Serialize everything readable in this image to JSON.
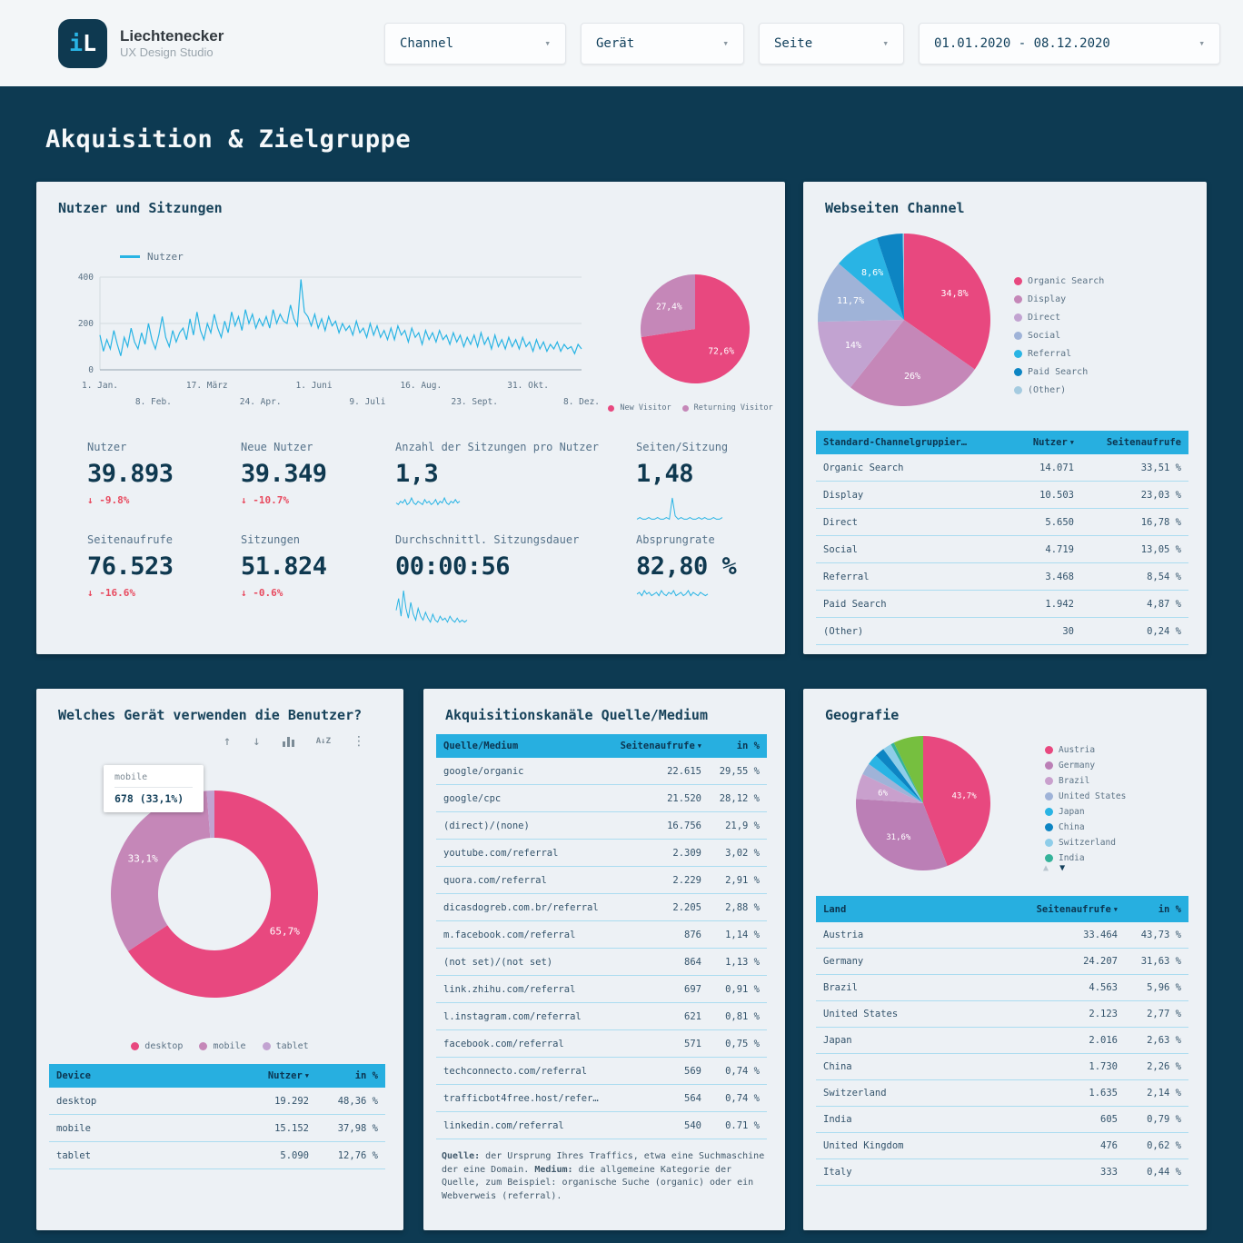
{
  "colors": {
    "background": "#0d3a52",
    "card": "#edf1f5",
    "header_bar": "#f3f6f8",
    "accent_cyan": "#29b4e4",
    "accent_pink": "#e8487f",
    "negative_red": "#e84a5f",
    "navy_text": "#0f3950",
    "table_header": "#27afe0"
  },
  "icons": {
    "chevron_down": "▾",
    "arrow_up": "↑",
    "arrow_down": "↓",
    "sort_az": "A↓Z",
    "kebab": "⋮",
    "sort_asc": "▲",
    "sort_desc": "▼",
    "delta_down": "↓"
  },
  "header": {
    "logo": {
      "mark_i": "i",
      "mark_l": "L",
      "brand": "Liechtenecker",
      "subtitle": "UX Design Studio"
    },
    "filters": [
      {
        "id": "channel",
        "label": "Channel"
      },
      {
        "id": "geraet",
        "label": "Gerät"
      },
      {
        "id": "seite",
        "label": "Seite"
      },
      {
        "id": "daterange",
        "label": "01.01.2020 - 08.12.2020"
      }
    ]
  },
  "page_title": "Akquisition & Zielgruppe",
  "cards": {
    "overview": {
      "title": "Nutzer und Sitzungen",
      "line_legend": "Nutzer",
      "kpis": [
        {
          "label": "Nutzer",
          "value": "39.893",
          "delta": "-9.8%"
        },
        {
          "label": "Neue Nutzer",
          "value": "39.349",
          "delta": "-10.7%"
        },
        {
          "label": "Anzahl der Sitzungen pro Nutzer",
          "value": "1,3",
          "spark": "sessions_per_user"
        },
        {
          "label": "Seiten/Sitzung",
          "value": "1,48",
          "spark": "pages_per_session"
        },
        {
          "label": "Seitenaufrufe",
          "value": "76.523",
          "delta": "-16.6%"
        },
        {
          "label": "Sitzungen",
          "value": "51.824",
          "delta": "-0.6%"
        },
        {
          "label": "Durchschnittl. Sitzungsdauer",
          "value": "00:00:56",
          "spark": "avg_duration"
        },
        {
          "label": "Absprungrate",
          "value": "82,80 %",
          "spark": "bounce_rate"
        }
      ]
    },
    "channels": {
      "title": "Webseiten Channel"
    },
    "devices": {
      "title": "Welches Gerät verwenden die Benutzer?",
      "toolbar": [
        "arrow_up",
        "arrow_down",
        "bar_chart",
        "sort_az",
        "kebab"
      ],
      "tooltip": {
        "line1": "mobile",
        "line2": "678 (33,1%)"
      }
    },
    "sources": {
      "title": "Akquisitionskanäle Quelle/Medium",
      "footnote": [
        {
          "b": "Quelle:"
        },
        {
          "t": " der Ursprung Ihres Traffics, etwa eine Suchmaschine der eine Domain. "
        },
        {
          "b": "Medium:"
        },
        {
          "t": " die allgemeine Kategorie der Quelle, zum Beispiel: organische Suche (organic) oder ein Webverweis (referral)."
        }
      ]
    },
    "geo": {
      "title": "Geografie"
    }
  },
  "tables": {
    "channels": {
      "widths": [
        "1fr",
        "90px",
        "118px"
      ],
      "header": [
        {
          "label": "Standard-Channelgruppier…"
        },
        {
          "label": "Nutzer",
          "sort": true
        },
        {
          "label": "Seitenaufrufe"
        }
      ],
      "rows": [
        [
          "Organic Search",
          "14.071",
          "33,51 %"
        ],
        [
          "Display",
          "10.503",
          "23,03 %"
        ],
        [
          "Direct",
          "5.650",
          "16,78 %"
        ],
        [
          "Social",
          "4.719",
          "13,05 %"
        ],
        [
          "Referral",
          "3.468",
          "8,54 %"
        ],
        [
          "Paid Search",
          "1.942",
          "4,87 %"
        ],
        [
          "(Other)",
          "30",
          "0,24 %"
        ]
      ]
    },
    "devices": {
      "widths": [
        "1fr",
        "96px",
        "76px"
      ],
      "header": [
        {
          "label": "Device"
        },
        {
          "label": "Nutzer",
          "sort": true
        },
        {
          "label": "in %"
        }
      ],
      "rows": [
        [
          "desktop",
          "19.292",
          "48,36 %"
        ],
        [
          "mobile",
          "15.152",
          "37,98 %"
        ],
        [
          "tablet",
          "5.090",
          "12,76 %"
        ]
      ]
    },
    "sources": {
      "widths": [
        "1fr",
        "96px",
        "64px"
      ],
      "header": [
        {
          "label": "Quelle/Medium"
        },
        {
          "label": "Seitenaufrufe",
          "sort": true
        },
        {
          "label": "in %"
        }
      ],
      "rows": [
        [
          "google/organic",
          "22.615",
          "29,55 %"
        ],
        [
          "google/cpc",
          "21.520",
          "28,12 %"
        ],
        [
          "(direct)/(none)",
          "16.756",
          "21,9 %"
        ],
        [
          "youtube.com/referral",
          "2.309",
          "3,02 %"
        ],
        [
          "quora.com/referral",
          "2.229",
          "2,91 %"
        ],
        [
          "dicasdogreb.com.br/referral",
          "2.205",
          "2,88 %"
        ],
        [
          "m.facebook.com/referral",
          "876",
          "1,14 %"
        ],
        [
          "(not set)/(not set)",
          "864",
          "1,13 %"
        ],
        [
          "link.zhihu.com/referral",
          "697",
          "0,91 %"
        ],
        [
          "l.instagram.com/referral",
          "621",
          "0,81 %"
        ],
        [
          "facebook.com/referral",
          "571",
          "0,75 %"
        ],
        [
          "techconnecto.com/referral",
          "569",
          "0,74 %"
        ],
        [
          "trafficbot4free.host/refer…",
          "564",
          "0,74 %"
        ],
        [
          "linkedin.com/referral",
          "540",
          "0.71 %"
        ]
      ]
    },
    "geo": {
      "widths": [
        "1fr",
        "112px",
        "70px"
      ],
      "header": [
        {
          "label": "Land"
        },
        {
          "label": "Seitenaufrufe",
          "sort": true
        },
        {
          "label": "in %"
        }
      ],
      "rows": [
        [
          "Austria",
          "33.464",
          "43,73 %"
        ],
        [
          "Germany",
          "24.207",
          "31,63 %"
        ],
        [
          "Brazil",
          "4.563",
          "5,96 %"
        ],
        [
          "United States",
          "2.123",
          "2,77 %"
        ],
        [
          "Japan",
          "2.016",
          "2,63 %"
        ],
        [
          "China",
          "1.730",
          "2,26 %"
        ],
        [
          "Switzerland",
          "1.635",
          "2,14 %"
        ],
        [
          "India",
          "605",
          "0,79 %"
        ],
        [
          "United Kingdom",
          "476",
          "0,62 %"
        ],
        [
          "Italy",
          "333",
          "0,44 %"
        ]
      ]
    }
  },
  "chart_data": [
    {
      "id": "users-timeseries",
      "type": "line",
      "title": "Nutzer und Sitzungen",
      "series_name": "Nutzer",
      "ylim": [
        0,
        400
      ],
      "yticks": [
        0,
        200,
        400
      ],
      "grid": true,
      "line_color": "#29b4e4",
      "x_labels": [
        "1. Jan.",
        "8. Feb.",
        "17. März",
        "24. Apr.",
        "1. Juni",
        "9. Juli",
        "16. Aug.",
        "23. Sept.",
        "31. Okt.",
        "8. Dez."
      ],
      "values": [
        150,
        80,
        130,
        90,
        170,
        110,
        60,
        140,
        100,
        180,
        120,
        90,
        160,
        110,
        200,
        130,
        90,
        150,
        230,
        140,
        100,
        170,
        120,
        160,
        180,
        130,
        220,
        150,
        250,
        170,
        130,
        200,
        160,
        240,
        180,
        140,
        210,
        160,
        250,
        190,
        230,
        170,
        260,
        200,
        240,
        180,
        220,
        190,
        230,
        180,
        260,
        200,
        240,
        210,
        200,
        280,
        220,
        190,
        390,
        250,
        230,
        190,
        240,
        180,
        220,
        170,
        230,
        190,
        210,
        160,
        200,
        170,
        190,
        150,
        210,
        160,
        180,
        140,
        200,
        150,
        190,
        140,
        170,
        130,
        180,
        130,
        190,
        150,
        170,
        120,
        180,
        140,
        160,
        110,
        170,
        130,
        160,
        120,
        170,
        130,
        150,
        110,
        160,
        120,
        150,
        100,
        140,
        110,
        150,
        100,
        160,
        110,
        140,
        90,
        150,
        100,
        130,
        90,
        140,
        100,
        130,
        90,
        140,
        100,
        120,
        80,
        130,
        90,
        120,
        80,
        110,
        90,
        120,
        80,
        110,
        90,
        100,
        70,
        110,
        90
      ]
    },
    {
      "id": "visitor-pie",
      "type": "pie",
      "title": "New vs Returning Visitor",
      "slices": [
        {
          "name": "New Visitor",
          "value": 72.6,
          "label": "72,6%",
          "color": "#e8487f"
        },
        {
          "name": "Returning Visitor",
          "value": 27.4,
          "label": "27,4%",
          "color": "#c587b8"
        }
      ]
    },
    {
      "id": "channel-pie",
      "type": "pie",
      "title": "Webseiten Channel",
      "slices": [
        {
          "name": "Organic Search",
          "value": 34.8,
          "label": "34,8%",
          "color": "#e8487f"
        },
        {
          "name": "Display",
          "value": 26.0,
          "label": "26%",
          "color": "#c587b8"
        },
        {
          "name": "Direct",
          "value": 14.0,
          "label": "14%",
          "color": "#c2a3d1"
        },
        {
          "name": "Social",
          "value": 11.7,
          "label": "11,7%",
          "color": "#9fb3d8"
        },
        {
          "name": "Referral",
          "value": 8.6,
          "label": "8,6%",
          "color": "#29b4e4"
        },
        {
          "name": "Paid Search",
          "value": 4.87,
          "color": "#0d85c3"
        },
        {
          "name": "(Other)",
          "value": 0.24,
          "color": "#a5cbe0"
        }
      ]
    },
    {
      "id": "device-donut",
      "type": "pie",
      "title": "Welches Gerät verwenden die Benutzer?",
      "donut": true,
      "slices": [
        {
          "name": "desktop",
          "value": 65.7,
          "label": "65,7%",
          "color": "#e8487f"
        },
        {
          "name": "mobile",
          "value": 33.1,
          "label": "33,1%",
          "color": "#c587b8"
        },
        {
          "name": "tablet",
          "value": 1.2,
          "color": "#c2a3d1"
        }
      ]
    },
    {
      "id": "geo-pie",
      "type": "pie",
      "title": "Geografie",
      "slices": [
        {
          "name": "Austria",
          "value": 43.7,
          "label": "43,7%",
          "color": "#e8487f"
        },
        {
          "name": "Germany",
          "value": 31.6,
          "label": "31,6%",
          "color": "#bb7fb6"
        },
        {
          "name": "Brazil",
          "value": 6.0,
          "label": "6%",
          "color": "#c9a0cd"
        },
        {
          "name": "United States",
          "value": 2.8,
          "color": "#9fb3d8"
        },
        {
          "name": "Japan",
          "value": 2.6,
          "color": "#29b4e4"
        },
        {
          "name": "China",
          "value": 2.3,
          "color": "#0d85c3"
        },
        {
          "name": "Switzerland",
          "value": 2.1,
          "color": "#8ecde9"
        },
        {
          "name": "India",
          "value": 0.8,
          "color": "#34b39a"
        },
        {
          "name": "(weitere)",
          "value": 7.1,
          "color": "#76bf3f",
          "legend": false
        }
      ]
    },
    {
      "id": "sparklines",
      "type": "line",
      "series": {
        "sessions_per_user": [
          3,
          2,
          4,
          3,
          5,
          2,
          3,
          6,
          3,
          2,
          4,
          3,
          2,
          5,
          3,
          4,
          2,
          3,
          5,
          2,
          4,
          3,
          6,
          3,
          2,
          4,
          3,
          5,
          3,
          4
        ],
        "pages_per_session": [
          2,
          3,
          2,
          2,
          3,
          2,
          2,
          3,
          2,
          2,
          3,
          2,
          15,
          4,
          2,
          3,
          2,
          2,
          3,
          2,
          2,
          3,
          2,
          3,
          2,
          2,
          3,
          2,
          2,
          3
        ],
        "avg_duration": [
          8,
          14,
          5,
          18,
          9,
          4,
          12,
          6,
          3,
          9,
          5,
          3,
          7,
          4,
          2,
          6,
          3,
          2,
          5,
          3,
          4,
          2,
          5,
          3,
          2,
          4,
          2,
          3,
          2,
          3
        ],
        "bounce_rate": [
          6,
          7,
          5,
          8,
          6,
          7,
          5,
          6,
          7,
          5,
          8,
          6,
          5,
          7,
          6,
          8,
          5,
          6,
          7,
          5,
          6,
          8,
          5,
          7,
          6,
          5,
          7,
          6,
          5,
          6
        ]
      }
    }
  ]
}
